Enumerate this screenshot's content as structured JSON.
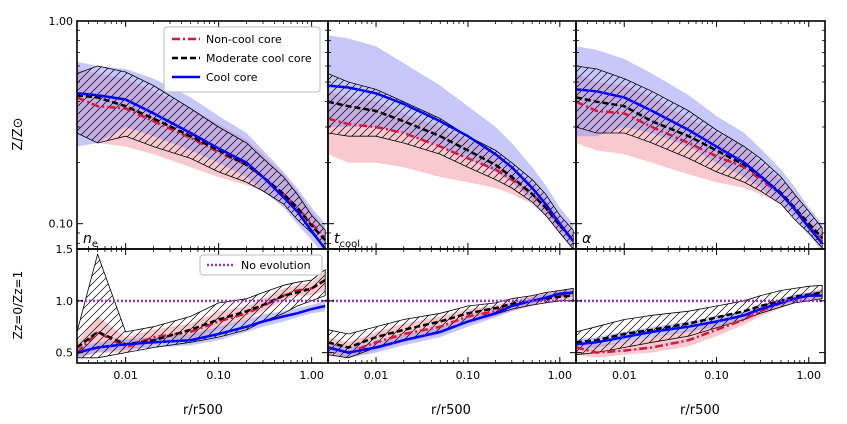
{
  "chart_data": {
    "type": "line",
    "xscale": "log",
    "xlim": [
      0.003,
      1.5
    ],
    "x_ticks": [
      0.01,
      0.1,
      1.0
    ],
    "x_tick_labels": [
      "0.01",
      "0.10",
      "1.00"
    ],
    "xlabel": "r/r500",
    "top_row": {
      "ylabel": "Z/Z⊙",
      "yscale": "log",
      "ylim": [
        0.075,
        1.0
      ],
      "y_ticks": [
        0.1,
        1.0
      ],
      "y_tick_labels": [
        "0.10",
        "1.00"
      ]
    },
    "bottom_row": {
      "ylabel": "Zz=0/Zz=1",
      "ylim": [
        0.4,
        1.5
      ],
      "y_ticks": [
        0.5,
        1.0,
        1.5
      ],
      "y_tick_labels": [
        "0.5",
        "1.0",
        "1.5"
      ]
    },
    "legend_top": [
      {
        "name": "Non-cool core",
        "color": "#dc143c",
        "style": "dashdot"
      },
      {
        "name": "Moderate cool core",
        "color": "#000000",
        "style": "dashed"
      },
      {
        "name": "Cool core",
        "color": "#0000ff",
        "style": "solid"
      }
    ],
    "legend_bottom": [
      {
        "name": "No evolution",
        "color": "#9932cc",
        "style": "dotted"
      }
    ],
    "colors": {
      "noncool": "#dc143c",
      "moderate": "#000000",
      "cool": "#0000ff",
      "noevo": "#9932cc",
      "noncool_band": "#f4a6b0",
      "cool_band": "#8f8ff5"
    },
    "panels": [
      {
        "label": "n",
        "label_sub": "e",
        "x": [
          0.003,
          0.005,
          0.01,
          0.02,
          0.05,
          0.1,
          0.2,
          0.3,
          0.5,
          0.7,
          1.0,
          1.4
        ],
        "top": {
          "noncool": [
            0.42,
            0.38,
            0.37,
            0.32,
            0.265,
            0.225,
            0.195,
            0.17,
            0.14,
            0.12,
            0.1,
            0.085
          ],
          "noncool_lo": [
            0.28,
            0.25,
            0.24,
            0.22,
            0.19,
            0.17,
            0.155,
            0.145,
            0.125,
            0.11,
            0.093,
            0.078
          ],
          "noncool_hi": [
            0.58,
            0.55,
            0.52,
            0.45,
            0.37,
            0.31,
            0.26,
            0.22,
            0.175,
            0.145,
            0.115,
            0.095
          ],
          "moderate": [
            0.43,
            0.42,
            0.38,
            0.33,
            0.27,
            0.23,
            0.195,
            0.17,
            0.14,
            0.12,
            0.098,
            0.083
          ],
          "moderate_lo": [
            0.28,
            0.25,
            0.27,
            0.24,
            0.21,
            0.18,
            0.16,
            0.145,
            0.125,
            0.105,
            0.09,
            0.075
          ],
          "moderate_hi": [
            0.55,
            0.6,
            0.56,
            0.48,
            0.37,
            0.3,
            0.25,
            0.21,
            0.17,
            0.14,
            0.11,
            0.093
          ],
          "cool": [
            0.44,
            0.43,
            0.41,
            0.35,
            0.28,
            0.235,
            0.2,
            0.17,
            0.135,
            0.115,
            0.092,
            0.075
          ],
          "cool_lo": [
            0.24,
            0.25,
            0.3,
            0.27,
            0.23,
            0.2,
            0.17,
            0.145,
            0.12,
            0.1,
            0.083,
            0.068
          ],
          "cool_hi": [
            0.63,
            0.6,
            0.58,
            0.52,
            0.42,
            0.34,
            0.28,
            0.23,
            0.18,
            0.15,
            0.12,
            0.1
          ]
        },
        "bottom": {
          "noncool": [
            0.5,
            0.7,
            0.55,
            0.65,
            0.7,
            0.8,
            0.88,
            0.95,
            1.05,
            1.1,
            1.12,
            1.2
          ],
          "noncool_lo": [
            0.45,
            0.5,
            0.5,
            0.58,
            0.62,
            0.72,
            0.82,
            0.9,
            1.0,
            1.05,
            1.05,
            1.1
          ],
          "noncool_hi": [
            0.6,
            0.85,
            0.65,
            0.72,
            0.78,
            0.9,
            0.95,
            1.02,
            1.12,
            1.15,
            1.18,
            1.28
          ],
          "moderate": [
            0.55,
            0.7,
            0.58,
            0.62,
            0.72,
            0.82,
            0.9,
            0.96,
            1.05,
            1.08,
            1.12,
            1.2
          ],
          "moderate_lo": [
            0.45,
            0.45,
            0.5,
            0.55,
            0.6,
            0.65,
            0.72,
            0.8,
            0.88,
            0.95,
            1.0,
            1.05
          ],
          "moderate_hi": [
            0.7,
            1.45,
            0.7,
            0.75,
            0.85,
            0.98,
            1.02,
            1.08,
            1.15,
            1.18,
            1.2,
            1.3
          ],
          "cool": [
            0.5,
            0.55,
            0.58,
            0.6,
            0.62,
            0.68,
            0.75,
            0.8,
            0.85,
            0.88,
            0.92,
            0.95
          ],
          "cool_lo": [
            0.45,
            0.5,
            0.53,
            0.55,
            0.57,
            0.62,
            0.7,
            0.75,
            0.8,
            0.84,
            0.88,
            0.9
          ],
          "cool_hi": [
            0.56,
            0.6,
            0.63,
            0.65,
            0.68,
            0.75,
            0.82,
            0.87,
            0.9,
            0.93,
            0.96,
            1.0
          ]
        }
      },
      {
        "label": "t",
        "label_sub": "cool",
        "x": [
          0.003,
          0.005,
          0.01,
          0.02,
          0.05,
          0.1,
          0.2,
          0.3,
          0.5,
          0.7,
          1.0,
          1.4
        ],
        "top": {
          "noncool": [
            0.33,
            0.31,
            0.3,
            0.28,
            0.24,
            0.21,
            0.185,
            0.165,
            0.14,
            0.12,
            0.098,
            0.082
          ],
          "noncool_lo": [
            0.22,
            0.2,
            0.2,
            0.19,
            0.17,
            0.16,
            0.15,
            0.14,
            0.125,
            0.11,
            0.09,
            0.076
          ],
          "noncool_hi": [
            0.45,
            0.42,
            0.4,
            0.35,
            0.3,
            0.26,
            0.22,
            0.19,
            0.16,
            0.135,
            0.108,
            0.09
          ],
          "moderate": [
            0.4,
            0.38,
            0.36,
            0.32,
            0.27,
            0.23,
            0.195,
            0.17,
            0.14,
            0.12,
            0.098,
            0.083
          ],
          "moderate_lo": [
            0.28,
            0.27,
            0.27,
            0.25,
            0.22,
            0.19,
            0.165,
            0.15,
            0.128,
            0.11,
            0.09,
            0.075
          ],
          "moderate_hi": [
            0.55,
            0.5,
            0.46,
            0.4,
            0.33,
            0.27,
            0.23,
            0.2,
            0.165,
            0.14,
            0.11,
            0.093
          ],
          "cool": [
            0.48,
            0.47,
            0.44,
            0.39,
            0.32,
            0.27,
            0.22,
            0.19,
            0.15,
            0.125,
            0.1,
            0.082
          ],
          "cool_lo": [
            0.3,
            0.3,
            0.3,
            0.28,
            0.24,
            0.21,
            0.18,
            0.16,
            0.13,
            0.11,
            0.09,
            0.075
          ],
          "cool_hi": [
            0.85,
            0.82,
            0.75,
            0.62,
            0.48,
            0.38,
            0.3,
            0.25,
            0.19,
            0.155,
            0.12,
            0.1
          ]
        },
        "bottom": {
          "noncool": [
            0.55,
            0.5,
            0.6,
            0.68,
            0.75,
            0.85,
            0.9,
            0.95,
            1.0,
            1.02,
            1.05,
            1.08
          ],
          "noncool_lo": [
            0.48,
            0.45,
            0.52,
            0.6,
            0.68,
            0.78,
            0.85,
            0.9,
            0.95,
            0.98,
            1.0,
            1.02
          ],
          "noncool_hi": [
            0.65,
            0.6,
            0.7,
            0.78,
            0.85,
            0.92,
            0.96,
            1.0,
            1.05,
            1.08,
            1.1,
            1.12
          ],
          "moderate": [
            0.6,
            0.55,
            0.65,
            0.72,
            0.8,
            0.88,
            0.93,
            0.97,
            1.0,
            1.02,
            1.04,
            1.05
          ],
          "moderate_lo": [
            0.48,
            0.45,
            0.55,
            0.62,
            0.7,
            0.8,
            0.87,
            0.92,
            0.96,
            0.98,
            1.0,
            1.0
          ],
          "moderate_hi": [
            0.72,
            0.68,
            0.75,
            0.82,
            0.88,
            0.95,
            0.98,
            1.02,
            1.05,
            1.08,
            1.1,
            1.12
          ],
          "cool": [
            0.55,
            0.5,
            0.55,
            0.62,
            0.7,
            0.8,
            0.88,
            0.95,
            1.0,
            1.03,
            1.07,
            1.08
          ],
          "cool_lo": [
            0.5,
            0.45,
            0.5,
            0.57,
            0.65,
            0.75,
            0.84,
            0.9,
            0.96,
            1.0,
            1.03,
            1.04
          ],
          "cool_hi": [
            0.6,
            0.55,
            0.6,
            0.67,
            0.75,
            0.85,
            0.92,
            0.98,
            1.04,
            1.07,
            1.1,
            1.12
          ]
        }
      },
      {
        "label": "α",
        "label_sub": "",
        "x": [
          0.003,
          0.005,
          0.01,
          0.02,
          0.05,
          0.1,
          0.2,
          0.3,
          0.5,
          0.7,
          1.0,
          1.4
        ],
        "top": {
          "noncool": [
            0.4,
            0.36,
            0.35,
            0.3,
            0.25,
            0.215,
            0.19,
            0.165,
            0.14,
            0.12,
            0.098,
            0.082
          ],
          "noncool_lo": [
            0.25,
            0.23,
            0.22,
            0.2,
            0.175,
            0.16,
            0.15,
            0.14,
            0.125,
            0.11,
            0.09,
            0.076
          ],
          "noncool_hi": [
            0.55,
            0.5,
            0.48,
            0.42,
            0.33,
            0.28,
            0.24,
            0.2,
            0.165,
            0.14,
            0.11,
            0.092
          ],
          "moderate": [
            0.42,
            0.4,
            0.38,
            0.32,
            0.27,
            0.23,
            0.195,
            0.17,
            0.142,
            0.12,
            0.1,
            0.085
          ],
          "moderate_lo": [
            0.3,
            0.28,
            0.28,
            0.25,
            0.21,
            0.18,
            0.16,
            0.145,
            0.125,
            0.105,
            0.09,
            0.076
          ],
          "moderate_hi": [
            0.6,
            0.58,
            0.52,
            0.45,
            0.36,
            0.29,
            0.24,
            0.21,
            0.17,
            0.14,
            0.115,
            0.095
          ],
          "cool": [
            0.46,
            0.45,
            0.42,
            0.36,
            0.29,
            0.24,
            0.2,
            0.172,
            0.14,
            0.118,
            0.096,
            0.08
          ],
          "cool_lo": [
            0.27,
            0.27,
            0.3,
            0.28,
            0.24,
            0.2,
            0.17,
            0.15,
            0.125,
            0.105,
            0.088,
            0.073
          ],
          "cool_hi": [
            0.75,
            0.72,
            0.65,
            0.55,
            0.43,
            0.34,
            0.28,
            0.235,
            0.185,
            0.152,
            0.12,
            0.1
          ]
        },
        "bottom": {
          "noncool": [
            0.55,
            0.5,
            0.52,
            0.55,
            0.62,
            0.72,
            0.82,
            0.9,
            0.98,
            1.02,
            1.05,
            1.08
          ],
          "noncool_lo": [
            0.48,
            0.45,
            0.48,
            0.5,
            0.56,
            0.66,
            0.77,
            0.85,
            0.93,
            0.98,
            1.0,
            1.02
          ],
          "noncool_hi": [
            0.62,
            0.58,
            0.6,
            0.65,
            0.72,
            0.8,
            0.88,
            0.95,
            1.02,
            1.06,
            1.08,
            1.12
          ],
          "moderate": [
            0.6,
            0.62,
            0.68,
            0.72,
            0.78,
            0.84,
            0.9,
            0.95,
            1.0,
            1.04,
            1.06,
            1.08
          ],
          "moderate_lo": [
            0.48,
            0.5,
            0.55,
            0.6,
            0.66,
            0.74,
            0.82,
            0.88,
            0.94,
            0.98,
            1.0,
            1.02
          ],
          "moderate_hi": [
            0.7,
            0.75,
            0.82,
            0.86,
            0.9,
            0.95,
            1.0,
            1.05,
            1.1,
            1.12,
            1.14,
            1.15
          ],
          "cool": [
            0.58,
            0.6,
            0.65,
            0.7,
            0.75,
            0.8,
            0.86,
            0.92,
            0.98,
            1.02,
            1.05,
            1.05
          ],
          "cool_lo": [
            0.53,
            0.55,
            0.6,
            0.65,
            0.7,
            0.75,
            0.82,
            0.88,
            0.94,
            0.98,
            1.01,
            1.02
          ],
          "cool_hi": [
            0.63,
            0.65,
            0.7,
            0.75,
            0.8,
            0.85,
            0.9,
            0.96,
            1.02,
            1.06,
            1.08,
            1.1
          ]
        }
      }
    ]
  }
}
